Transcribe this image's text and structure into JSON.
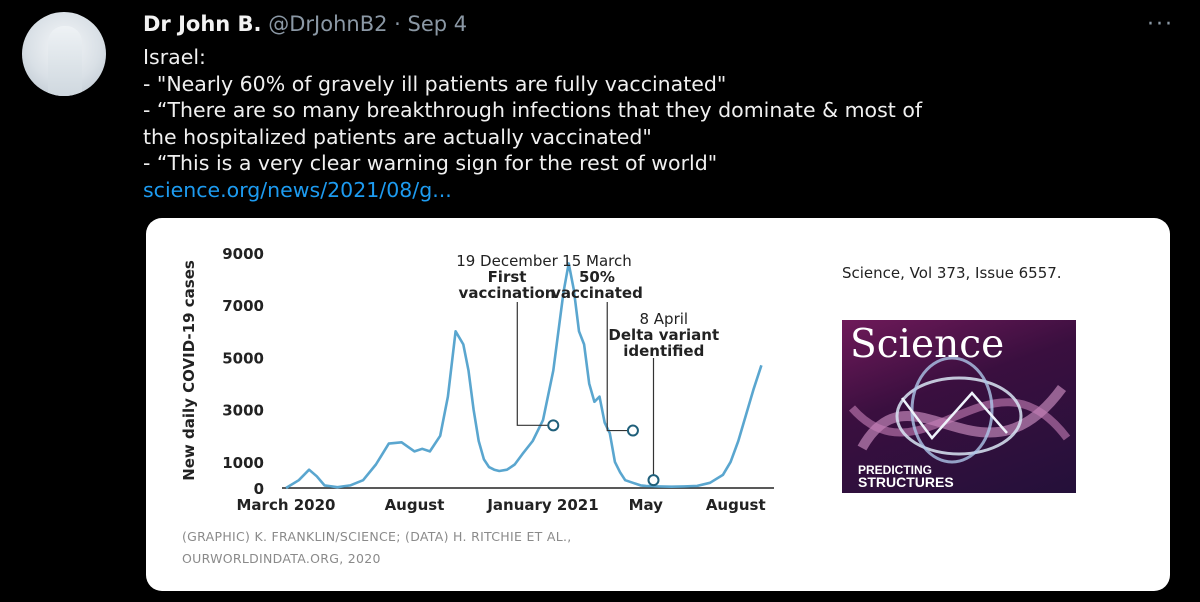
{
  "tweet": {
    "author_name": "Dr John B.",
    "handle": "@DrJohnB2",
    "date": "Sep 4",
    "more_icon": "more-icon",
    "lines": [
      "Israel:",
      "- \"Nearly 60% of gravely ill patients are fully vaccinated\"",
      "- “There are so many breakthrough infections that they dominate & most of",
      "the hospitalized patients are actually vaccinated\"",
      "-  “This is a very clear warning sign for the rest of world\""
    ],
    "link": "science.org/news/2021/08/g..."
  },
  "card": {
    "credit_line1": "(GRAPHIC) K. FRANKLIN/SCIENCE; (DATA) H. RITCHIE ET AL.,",
    "credit_line2": "OURWORLDINDATA.ORG, 2020",
    "cover_caption": "Science, Vol 373, Issue 6557.",
    "cover_masthead": "Science",
    "cover_title_1": "PREDICTING",
    "cover_title_2": "STRUCTURES"
  },
  "chart_data": {
    "type": "line",
    "title": "",
    "ylabel": "New daily COVID-19 cases",
    "xlabel": "",
    "x_tick_labels": [
      "March 2020",
      "August",
      "January 2021",
      "May",
      "August"
    ],
    "y_ticks": [
      0,
      1000,
      3000,
      5000,
      7000,
      9000
    ],
    "ylim": [
      0,
      9000
    ],
    "xlim_months": [
      0,
      18.6
    ],
    "series": [
      {
        "name": "",
        "color": "#5aa6cf",
        "x": [
          0.0,
          0.5,
          0.9,
          1.2,
          1.5,
          2.0,
          2.5,
          3.0,
          3.5,
          4.0,
          4.5,
          5.0,
          5.3,
          5.6,
          6.0,
          6.3,
          6.6,
          6.9,
          7.1,
          7.3,
          7.5,
          7.7,
          7.9,
          8.1,
          8.3,
          8.6,
          8.9,
          9.2,
          9.6,
          10.0,
          10.4,
          10.6,
          10.8,
          11.0,
          11.2,
          11.4,
          11.6,
          11.8,
          12.0,
          12.2,
          12.4,
          12.6,
          12.8,
          13.0,
          13.2,
          13.5,
          13.8,
          14.0,
          14.5,
          15.0,
          15.5,
          16.0,
          16.5,
          17.0,
          17.3,
          17.6,
          17.9,
          18.2,
          18.5
        ],
        "values": [
          0,
          300,
          700,
          450,
          100,
          30,
          100,
          300,
          900,
          1700,
          1750,
          1400,
          1500,
          1400,
          2000,
          3500,
          6000,
          5500,
          4500,
          3000,
          1800,
          1100,
          800,
          700,
          650,
          700,
          900,
          1300,
          1800,
          2600,
          4500,
          6000,
          7500,
          8600,
          7600,
          6000,
          5500,
          4000,
          3300,
          3500,
          2500,
          2100,
          1000,
          600,
          300,
          200,
          100,
          80,
          60,
          50,
          60,
          80,
          200,
          500,
          1000,
          1800,
          2800,
          3800,
          4700
        ]
      }
    ],
    "annotations": [
      {
        "date": "19 December",
        "label_lines": [
          "19 December",
          "First",
          "vaccination"
        ],
        "x": 10.4,
        "y": 2400
      },
      {
        "date": "15 March",
        "label_lines": [
          "15 March",
          "50%",
          "vaccinated"
        ],
        "x": 13.5,
        "y": 2200
      },
      {
        "date": "8 April",
        "label_lines": [
          "8 April",
          "Delta variant",
          "identified"
        ],
        "x": 14.3,
        "y": 300
      }
    ],
    "grid": false,
    "legend": "none"
  }
}
